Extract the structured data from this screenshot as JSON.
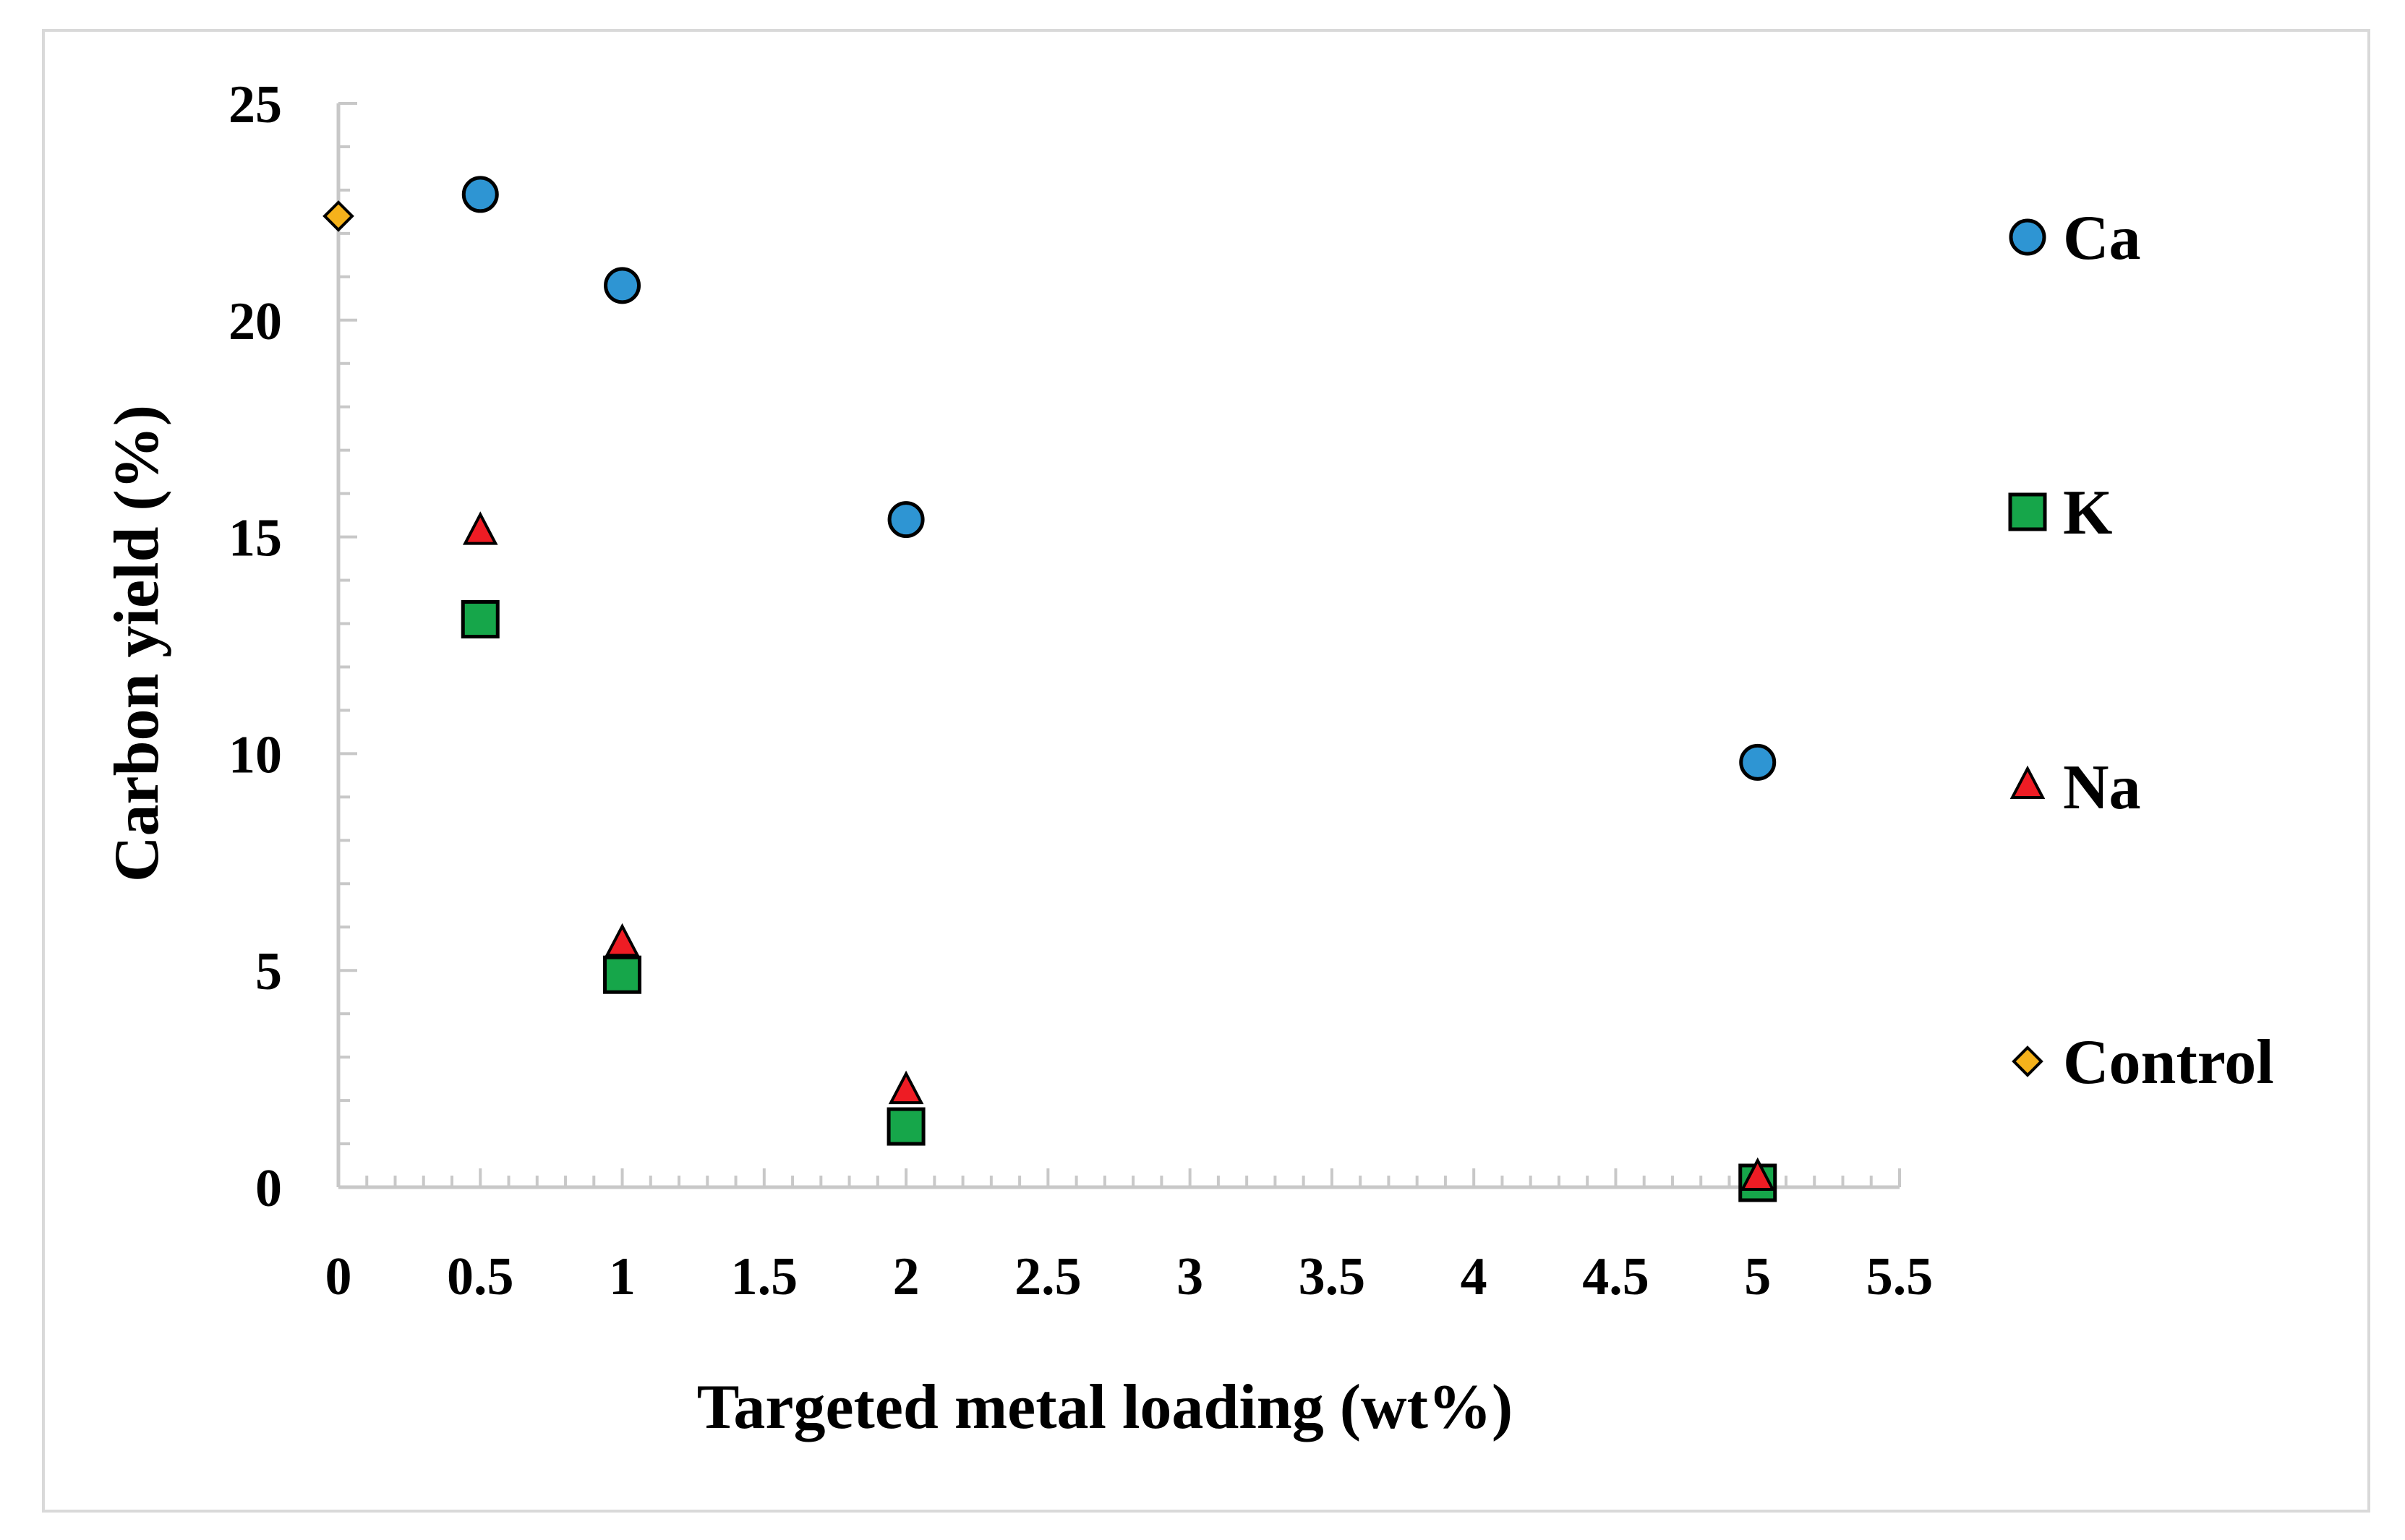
{
  "chart_data": {
    "type": "scatter",
    "xlabel": "Targeted metal loading (wt%)",
    "ylabel": "Carbon yield (%)",
    "xlim": [
      0,
      5.5
    ],
    "ylim": [
      0,
      25
    ],
    "x_tick_labels": [
      "0",
      "0.5",
      "1",
      "1.5",
      "2",
      "2.5",
      "3",
      "3.5",
      "4",
      "4.5",
      "5",
      "5.5"
    ],
    "y_tick_labels": [
      "0",
      "5",
      "10",
      "15",
      "20",
      "25"
    ],
    "legend_position": "right",
    "grid": false,
    "series": [
      {
        "name": "Ca",
        "marker": "circle",
        "color": "#2e95d3",
        "x": [
          0.5,
          1,
          2,
          5
        ],
        "y": [
          22.9,
          20.8,
          15.4,
          9.8
        ]
      },
      {
        "name": "K",
        "marker": "square",
        "color": "#16a64a",
        "x": [
          0.5,
          1,
          2,
          5
        ],
        "y": [
          13.1,
          4.9,
          1.4,
          0.1
        ]
      },
      {
        "name": "Na",
        "marker": "triangle",
        "color": "#ee1c24",
        "x": [
          0.5,
          1,
          2,
          5
        ],
        "y": [
          15.1,
          5.6,
          2.2,
          0.2
        ]
      },
      {
        "name": "Control",
        "marker": "diamond",
        "color": "#f5b21b",
        "x": [
          0
        ],
        "y": [
          22.4
        ]
      }
    ]
  }
}
